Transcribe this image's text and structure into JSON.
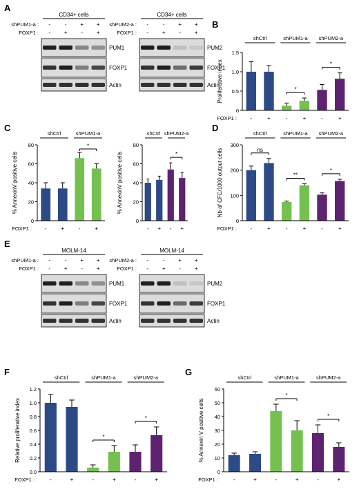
{
  "colors": {
    "navy": "#2d4a87",
    "green": "#74c14f",
    "purple": "#5e2370",
    "blot_bg": "#dcdcdc",
    "band_dark": "#1f1f1f",
    "band_mid": "#6d6d6d"
  },
  "panels": {
    "A": {
      "letter": "A",
      "blots": [
        {
          "title": "CD34+ cells",
          "row1_label": "shPUM1-a :",
          "row2_label": "FOXP1 :",
          "row1_values": [
            "-",
            "-",
            "+",
            "+"
          ],
          "row2_values": [
            "-",
            "+",
            "-",
            "+"
          ],
          "bands": [
            "PUM1",
            "FOXP1",
            "Actin"
          ]
        },
        {
          "title": "CD34+ cells",
          "row1_label": "shPUM2-a :",
          "row2_label": "FOXP1 :",
          "row1_values": [
            "-",
            "-",
            "+",
            "+"
          ],
          "row2_values": [
            "-",
            "+",
            "-",
            "+"
          ],
          "bands": [
            "PUM2",
            "FOXP1",
            "Actin"
          ]
        }
      ]
    },
    "E": {
      "letter": "E",
      "blots": [
        {
          "title": "MOLM-14",
          "row1_label": "shPUM1-a :",
          "row2_label": "FOXP1 :",
          "row1_values": [
            "-",
            "-",
            "+",
            "+"
          ],
          "row2_values": [
            "-",
            "+",
            "-",
            "+"
          ],
          "bands": [
            "PUM1",
            "FOXP1",
            "Actin"
          ]
        },
        {
          "title": "MOLM-14",
          "row1_label": "shPUM2-a :",
          "row2_label": "FOXP1 :",
          "row1_values": [
            "-",
            "-",
            "+",
            "+"
          ],
          "row2_values": [
            "-",
            "+",
            "-",
            "+"
          ],
          "bands": [
            "PUM2",
            "FOXP1",
            "Actin"
          ]
        }
      ]
    }
  },
  "chart_data": [
    {
      "id": "B",
      "letter": "B",
      "type": "bar",
      "title": "",
      "xlabel": "",
      "ylabel": "Proliferative index",
      "ylim": [
        0,
        1.5
      ],
      "yticks": [
        "0",
        "0.5",
        "1.0",
        "1.5"
      ],
      "yticks_values": [
        0,
        0.5,
        1.0,
        1.5
      ],
      "groups": [
        "shCtrl",
        "shPUM1-a",
        "shPUM2-a"
      ],
      "foxp1_label": "FOXP1 :",
      "foxp1": [
        "-",
        "+",
        "-",
        "+",
        "-",
        "+"
      ],
      "values": [
        1.0,
        1.0,
        0.12,
        0.25,
        0.53,
        0.82
      ],
      "errors": [
        0.26,
        0.16,
        0.07,
        0.07,
        0.14,
        0.15
      ],
      "bar_colors": [
        "navy",
        "navy",
        "green",
        "green",
        "purple",
        "purple"
      ],
      "significance": [
        {
          "pair": [
            2,
            3
          ],
          "label": "*"
        },
        {
          "pair": [
            4,
            5
          ],
          "label": "*"
        }
      ]
    },
    {
      "id": "C1",
      "letter": "C",
      "type": "bar",
      "title": "",
      "xlabel": "",
      "ylabel": "% AnnexinV positive cells",
      "ylim": [
        0,
        80
      ],
      "yticks": [
        "0",
        "20",
        "40",
        "60",
        "80"
      ],
      "yticks_values": [
        0,
        20,
        40,
        60,
        80
      ],
      "groups": [
        "shCtrl",
        "shPUM1-a"
      ],
      "foxp1_label": "FOXP1 :",
      "foxp1": [
        "-",
        "+",
        "-",
        "+"
      ],
      "values": [
        34,
        34,
        66,
        55
      ],
      "errors": [
        6,
        6,
        6,
        5
      ],
      "bar_colors": [
        "navy",
        "navy",
        "green",
        "green"
      ],
      "significance": [
        {
          "pair": [
            2,
            3
          ],
          "label": "*"
        }
      ]
    },
    {
      "id": "C2",
      "letter": "",
      "type": "bar",
      "title": "",
      "xlabel": "",
      "ylabel": "% AnnexinV positive cells",
      "ylim": [
        0,
        80
      ],
      "yticks": [
        "0",
        "20",
        "40",
        "60",
        "80"
      ],
      "yticks_values": [
        0,
        20,
        40,
        60,
        80
      ],
      "groups": [
        "shCtrl",
        "shPUM2-a"
      ],
      "foxp1_label": "",
      "foxp1": [
        "-",
        "+",
        "-",
        "+"
      ],
      "values": [
        40,
        43,
        54,
        45
      ],
      "errors": [
        4,
        4,
        7,
        6
      ],
      "bar_colors": [
        "navy",
        "navy",
        "purple",
        "purple"
      ],
      "significance": [
        {
          "pair": [
            2,
            3
          ],
          "label": "*"
        }
      ]
    },
    {
      "id": "D",
      "letter": "D",
      "type": "bar",
      "title": "",
      "xlabel": "",
      "ylabel": "Nb of CFC/1000 output cells",
      "ylim": [
        0,
        300
      ],
      "yticks": [
        "0",
        "100",
        "200",
        "300"
      ],
      "yticks_values": [
        0,
        100,
        200,
        300
      ],
      "groups": [
        "shCtrl",
        "shPUM1-a",
        "shPUM2-a"
      ],
      "foxp1_label": "FOXP1 :",
      "foxp1": [
        "-",
        "+",
        "-",
        "+",
        "-",
        "+"
      ],
      "values": [
        200,
        228,
        74,
        140,
        103,
        157
      ],
      "errors": [
        16,
        18,
        4,
        6,
        7,
        7
      ],
      "bar_colors": [
        "navy",
        "navy",
        "green",
        "green",
        "purple",
        "purple"
      ],
      "significance": [
        {
          "pair": [
            0,
            1
          ],
          "label": "ns"
        },
        {
          "pair": [
            2,
            3
          ],
          "label": "**"
        },
        {
          "pair": [
            4,
            5
          ],
          "label": "*"
        }
      ]
    },
    {
      "id": "F",
      "letter": "F",
      "type": "bar",
      "title": "",
      "xlabel": "",
      "ylabel": "Relative proliferative index",
      "ylim": [
        0,
        1.2
      ],
      "yticks": [
        "0.0",
        "0.2",
        "0.4",
        "0.6",
        "0.8",
        "1.0",
        "1.2"
      ],
      "yticks_values": [
        0,
        0.2,
        0.4,
        0.6,
        0.8,
        1.0,
        1.2
      ],
      "groups": [
        "shCtrl",
        "shPUM1-a",
        "shPUM2-a"
      ],
      "foxp1_label": "FOXP1 :",
      "foxp1": [
        "-",
        "+",
        "-",
        "+",
        "-",
        "+"
      ],
      "values": [
        1.0,
        0.94,
        0.06,
        0.29,
        0.29,
        0.53
      ],
      "errors": [
        0.12,
        0.1,
        0.04,
        0.09,
        0.1,
        0.12
      ],
      "bar_colors": [
        "navy",
        "navy",
        "green",
        "green",
        "purple",
        "purple"
      ],
      "significance": [
        {
          "pair": [
            2,
            3
          ],
          "label": "*"
        },
        {
          "pair": [
            4,
            5
          ],
          "label": "*"
        }
      ]
    },
    {
      "id": "G",
      "letter": "G",
      "type": "bar",
      "title": "",
      "xlabel": "",
      "ylabel": "% Annexin V positive cells",
      "ylim": [
        0,
        60
      ],
      "yticks": [
        "0",
        "10",
        "20",
        "30",
        "40",
        "50",
        "60"
      ],
      "yticks_values": [
        0,
        10,
        20,
        30,
        40,
        50,
        60
      ],
      "groups": [
        "shCtrl",
        "shPUM1-a",
        "shPUM2-a"
      ],
      "foxp1_label": "FOXP1 :",
      "foxp1": [
        "-",
        "+",
        "-",
        "+",
        "-",
        "+"
      ],
      "values": [
        12,
        13,
        44,
        30,
        28,
        18
      ],
      "errors": [
        1.5,
        1.5,
        5,
        7,
        6,
        3
      ],
      "bar_colors": [
        "navy",
        "navy",
        "green",
        "green",
        "purple",
        "purple"
      ],
      "significance": [
        {
          "pair": [
            2,
            3
          ],
          "label": "*"
        },
        {
          "pair": [
            4,
            5
          ],
          "label": "*"
        }
      ]
    }
  ]
}
